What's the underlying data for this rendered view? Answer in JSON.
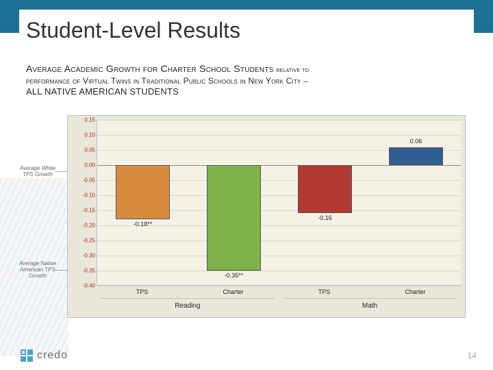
{
  "header": {
    "title": "Student-Level Results",
    "banner_color": "#1d6f94"
  },
  "subtitle": {
    "line1": "Average Academic Growth for Charter School Students",
    "line2_small": "relative to",
    "line3": "performance of Virtual Twins in Traditional Public Schools in New York City –",
    "line4": "ALL NATIVE AMERICAN STUDENTS"
  },
  "side_labels": {
    "top": "Average White TPS Growth",
    "bottom": "Average Native American TPS Growth"
  },
  "chart": {
    "type": "bar",
    "background_color": "#e9e7d9",
    "plot_background": "#f4f2e6",
    "grid_color": "#d9d7c9",
    "zero_color": "#8a8a7e",
    "ylim": [
      -0.4,
      0.15
    ],
    "ytick_step": 0.05,
    "yticks": [
      "0.15",
      "0.10",
      "0.05",
      "0.00",
      "-0.05",
      "-0.10",
      "-0.15",
      "-0.20",
      "-0.25",
      "-0.30",
      "-0.35",
      "-0.40"
    ],
    "tick_color": "#b22222",
    "tick_fontsize": 8,
    "groups": [
      "Reading",
      "Math"
    ],
    "categories": [
      "TPS",
      "Charter",
      "TPS",
      "Charter"
    ],
    "values": [
      -0.18,
      -0.35,
      -0.16,
      0.06
    ],
    "value_labels": [
      "-0.18**",
      "-0.35**",
      "-0.16",
      "0.06"
    ],
    "bar_colors": [
      "#d78b3f",
      "#7fb24a",
      "#b23a33",
      "#2f5f8f"
    ],
    "bar_width": 0.6
  },
  "footer": {
    "logo_text": "credo",
    "page_number": "14"
  }
}
